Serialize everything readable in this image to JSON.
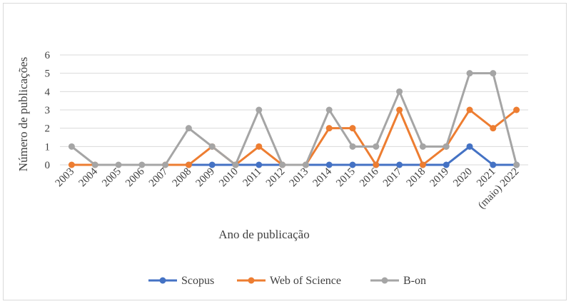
{
  "chart_data": {
    "type": "line",
    "title": "",
    "xlabel": "Ano de publicação",
    "ylabel": "Número de publicações",
    "ylim": [
      0,
      6
    ],
    "yticks": [
      0,
      1,
      2,
      3,
      4,
      5,
      6
    ],
    "grid": true,
    "legend_position": "bottom",
    "categories": [
      "2003",
      "2004",
      "2005",
      "2006",
      "2007",
      "2008",
      "2009",
      "2010",
      "2011",
      "2012",
      "2013",
      "2014",
      "2015",
      "2016",
      "2017",
      "2018",
      "2019",
      "2020",
      "2021",
      "(maio) 2022"
    ],
    "series": [
      {
        "name": "Scopus",
        "color": "#4472c4",
        "values": [
          null,
          null,
          null,
          null,
          null,
          0,
          0,
          0,
          0,
          0,
          0,
          0,
          0,
          0,
          0,
          0,
          0,
          1,
          0,
          0
        ]
      },
      {
        "name": "Web of Science",
        "color": "#ed7d31",
        "values": [
          0,
          0,
          null,
          null,
          0,
          0,
          1,
          0,
          1,
          0,
          0,
          2,
          2,
          0,
          3,
          0,
          1,
          3,
          2,
          3
        ]
      },
      {
        "name": "B-on",
        "color": "#a5a5a5",
        "values": [
          1,
          0,
          0,
          0,
          0,
          2,
          1,
          0,
          3,
          0,
          0,
          3,
          1,
          1,
          4,
          1,
          1,
          5,
          5,
          0
        ]
      }
    ]
  }
}
